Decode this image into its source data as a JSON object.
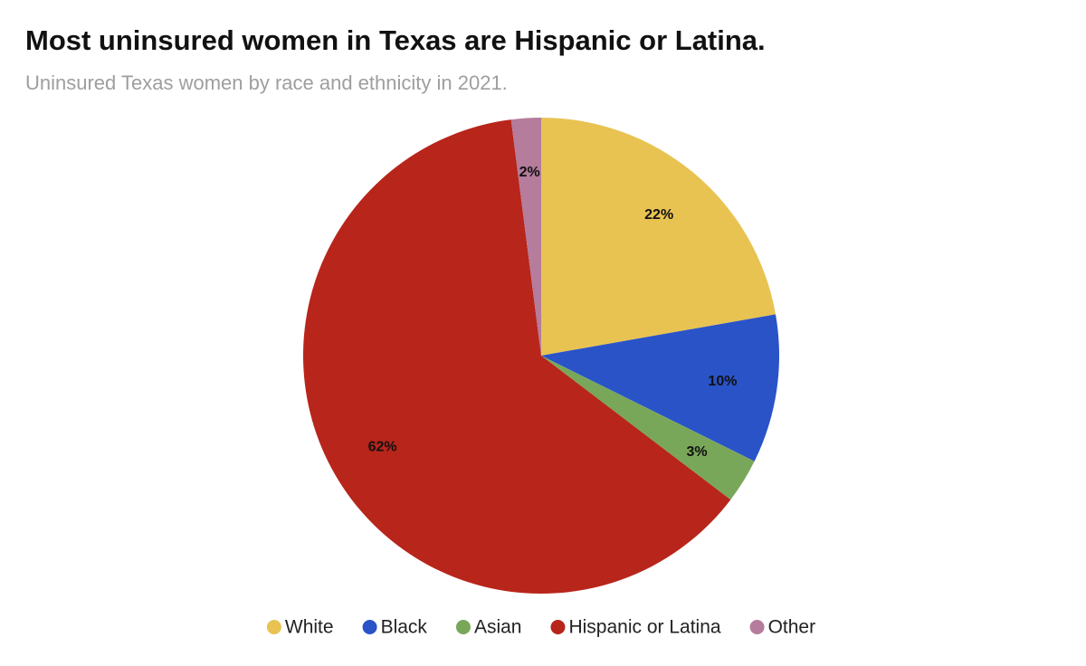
{
  "chart_data": {
    "type": "pie",
    "title": "Most uninsured women in Texas are Hispanic or Latina.",
    "subtitle": "Uninsured Texas women by race and ethnicity in 2021.",
    "categories": [
      "White",
      "Black",
      "Asian",
      "Hispanic or Latina",
      "Other"
    ],
    "values": [
      22,
      10,
      3,
      62,
      2
    ],
    "value_labels": [
      "22%",
      "10%",
      "3%",
      "62%",
      "2%"
    ],
    "colors": [
      "#e8c352",
      "#2a53c8",
      "#79a75a",
      "#b8251b",
      "#b57c9b"
    ],
    "legend": "bottom"
  }
}
